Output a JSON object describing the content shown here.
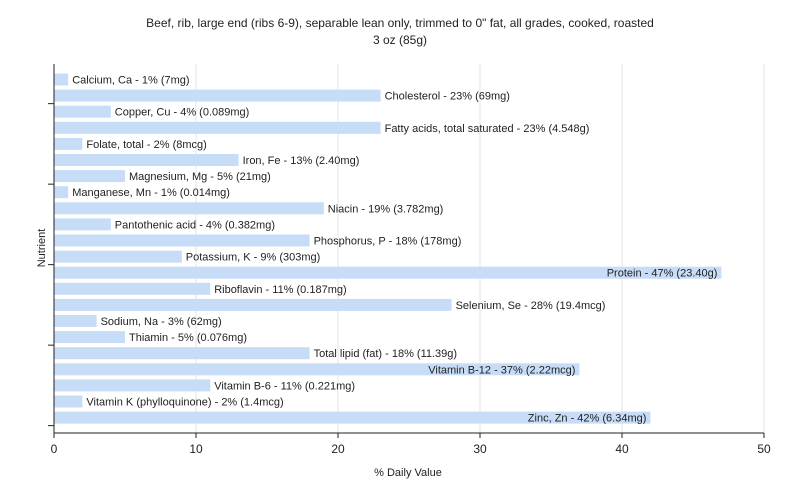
{
  "chart_data": {
    "type": "bar",
    "orientation": "horizontal",
    "title": "Beef, rib, large end (ribs 6-9), separable lean only, trimmed to 0\" fat, all grades, cooked, roasted",
    "subtitle": "3 oz (85g)",
    "xlabel": "% Daily Value",
    "ylabel": "Nutrient",
    "xlim": [
      0,
      50
    ],
    "xticks": [
      0,
      10,
      20,
      30,
      40,
      50
    ],
    "grid": "vertical",
    "legend": "none",
    "bar_color": "#c6dcf7",
    "grid_color": "#e6e6e6",
    "categories": [
      "Calcium, Ca",
      "Cholesterol",
      "Copper, Cu",
      "Fatty acids, total saturated",
      "Folate, total",
      "Iron, Fe",
      "Magnesium, Mg",
      "Manganese, Mn",
      "Niacin",
      "Pantothenic acid",
      "Phosphorus, P",
      "Potassium, K",
      "Protein",
      "Riboflavin",
      "Selenium, Se",
      "Sodium, Na",
      "Thiamin",
      "Total lipid (fat)",
      "Vitamin B-12",
      "Vitamin B-6",
      "Vitamin K (phylloquinone)",
      "Zinc, Zn"
    ],
    "values": [
      1,
      23,
      4,
      23,
      2,
      13,
      5,
      1,
      19,
      4,
      18,
      9,
      47,
      11,
      28,
      3,
      5,
      18,
      37,
      11,
      2,
      42
    ],
    "labels": [
      "Calcium, Ca - 1% (7mg)",
      "Cholesterol - 23% (69mg)",
      "Copper, Cu - 4% (0.089mg)",
      "Fatty acids, total saturated - 23% (4.548g)",
      "Folate, total - 2% (8mcg)",
      "Iron, Fe - 13% (2.40mg)",
      "Magnesium, Mg - 5% (21mg)",
      "Manganese, Mn - 1% (0.014mg)",
      "Niacin - 19% (3.782mg)",
      "Pantothenic acid - 4% (0.382mg)",
      "Phosphorus, P - 18% (178mg)",
      "Potassium, K - 9% (303mg)",
      "Protein - 47% (23.40g)",
      "Riboflavin - 11% (0.187mg)",
      "Selenium, Se - 28% (19.4mcg)",
      "Sodium, Na - 3% (62mg)",
      "Thiamin - 5% (0.076mg)",
      "Total lipid (fat) - 18% (11.39g)",
      "Vitamin B-12 - 37% (2.22mcg)",
      "Vitamin B-6 - 11% (0.221mg)",
      "Vitamin K (phylloquinone) - 2% (1.4mcg)",
      "Zinc, Zn - 42% (6.34mg)"
    ],
    "inside_label_for": [
      "Protein",
      "Vitamin B-12",
      "Zinc, Zn"
    ]
  }
}
